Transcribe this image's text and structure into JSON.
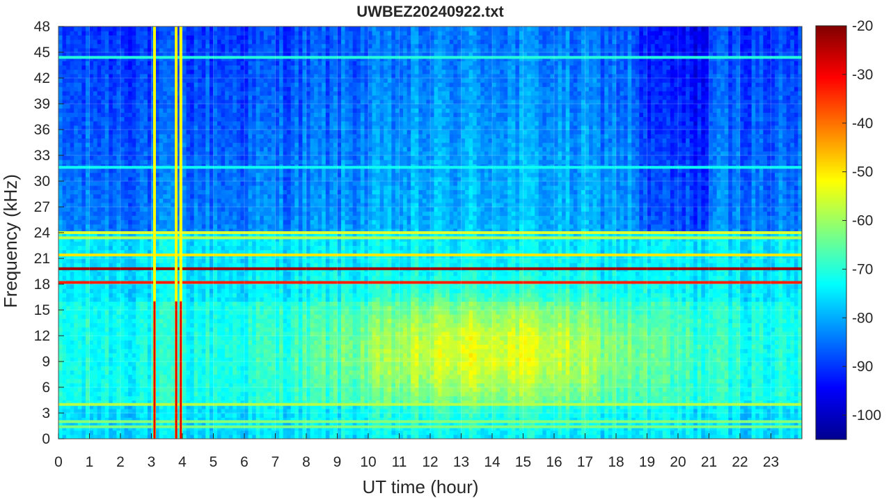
{
  "chart_data": {
    "type": "heatmap",
    "title": "UWBEZ20240922.txt",
    "xlabel": "UT time (hour)",
    "ylabel": "Frequency (kHz)",
    "xlim": [
      0,
      24
    ],
    "ylim": [
      0,
      48
    ],
    "x_ticks": [
      "0",
      "1",
      "2",
      "3",
      "4",
      "5",
      "6",
      "7",
      "8",
      "9",
      "10",
      "11",
      "12",
      "13",
      "14",
      "15",
      "16",
      "17",
      "18",
      "19",
      "20",
      "21",
      "22",
      "23"
    ],
    "y_ticks": [
      "0",
      "3",
      "6",
      "9",
      "12",
      "15",
      "18",
      "21",
      "24",
      "27",
      "30",
      "33",
      "36",
      "39",
      "42",
      "45",
      "48"
    ],
    "colorbar": {
      "colormap": "jet",
      "range": [
        -105,
        -20
      ],
      "ticks": [
        "-20",
        "-30",
        "-40",
        "-50",
        "-60",
        "-70",
        "-80",
        "-90",
        "-100"
      ]
    },
    "grid": true,
    "features": {
      "narrowband_lines_khz": [
        19.8,
        18.2,
        21.4,
        24.0,
        23.4,
        4.0,
        2.0,
        1.4,
        44.4,
        31.6
      ],
      "broadband_spikes_hour": [
        3.1,
        3.8,
        3.95
      ],
      "daytime_enhancement_hours": [
        9.5,
        18.7
      ]
    }
  }
}
